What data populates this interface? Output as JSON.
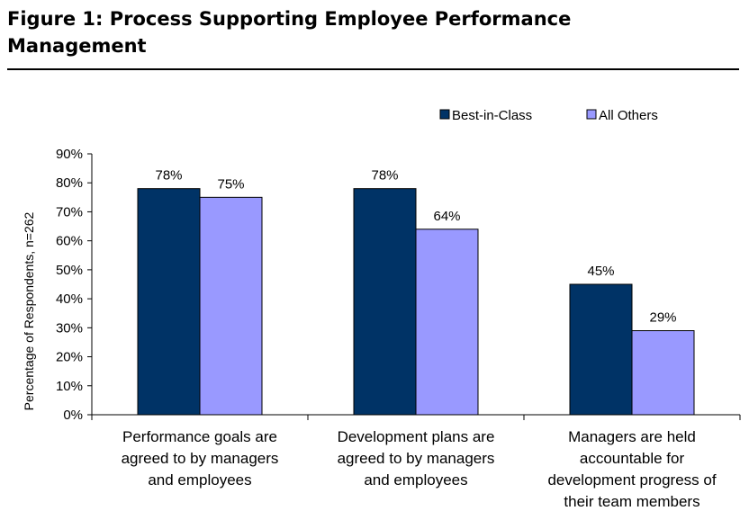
{
  "figure": {
    "title_line1": "Figure 1: Process Supporting Employee Performance",
    "title_line2": "Management"
  },
  "chart_data": {
    "type": "bar",
    "title": "Figure 1: Process Supporting Employee Performance Management",
    "ylabel": "Percentage of Respondents,  n=262",
    "xlabel": "",
    "ylim": [
      0,
      90
    ],
    "yticks": [
      0,
      10,
      20,
      30,
      40,
      50,
      60,
      70,
      80,
      90
    ],
    "ytick_labels": [
      "0%",
      "10%",
      "20%",
      "30%",
      "40%",
      "50%",
      "60%",
      "70%",
      "80%",
      "90%"
    ],
    "grid": false,
    "legend_position": "top-right",
    "categories": [
      [
        "Performance goals are",
        "agreed to by managers",
        "and employees"
      ],
      [
        "Development plans are",
        "agreed to by managers",
        "and employees"
      ],
      [
        "Managers are held",
        "accountable for",
        "development progress of",
        "their team members"
      ]
    ],
    "series": [
      {
        "name": "Best-in-Class",
        "color": "#003366",
        "values": [
          78,
          78,
          45
        ],
        "labels": [
          "78%",
          "78%",
          "45%"
        ]
      },
      {
        "name": "All Others",
        "color": "#9999ff",
        "values": [
          75,
          64,
          29
        ],
        "labels": [
          "75%",
          "64%",
          "29%"
        ]
      }
    ]
  }
}
